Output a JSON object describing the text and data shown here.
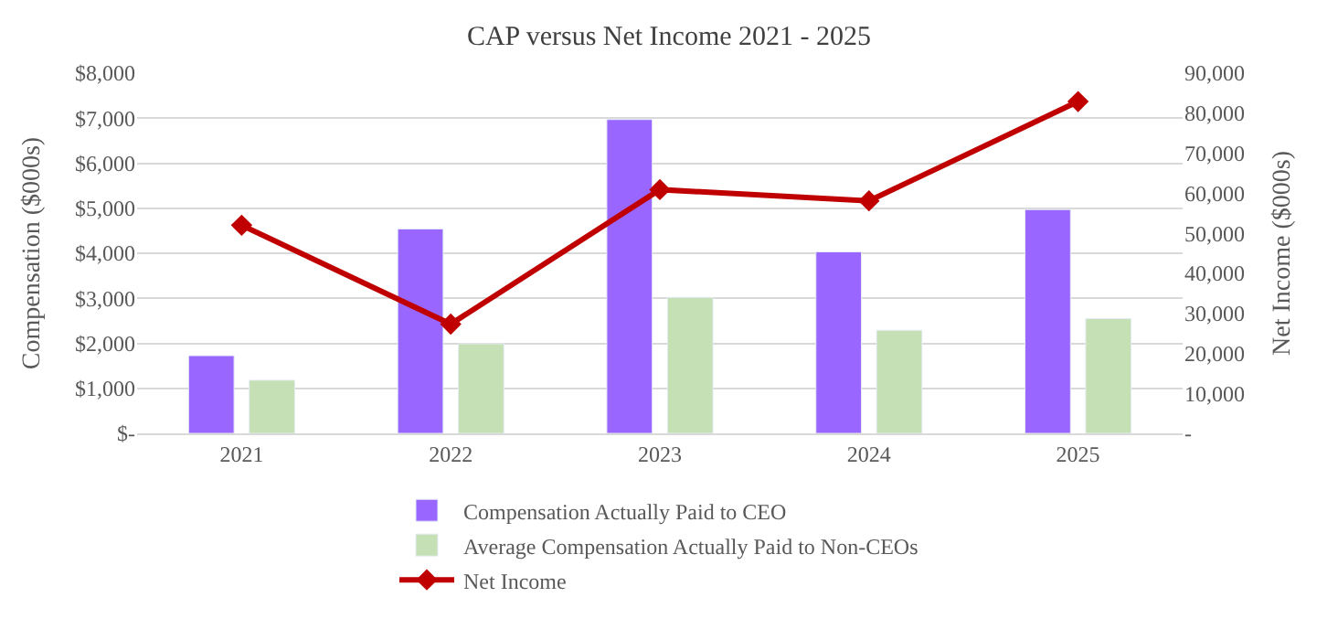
{
  "chart_data": {
    "type": "bar",
    "title": "CAP versus Net Income 2021 - 2025",
    "categories": [
      "2021",
      "2022",
      "2023",
      "2024",
      "2025"
    ],
    "ylabel": "Compensation ($000s)",
    "y2label": "Net Income ($000s)",
    "series": [
      {
        "name": "Compensation Actually Paid to CEO",
        "color": "#9966ff",
        "values": [
          1725,
          4540,
          6970,
          4030,
          4970
        ]
      },
      {
        "name": "Average Compensation Actually Paid to Non-CEOs",
        "color": "#c5e0b4",
        "values": [
          1180,
          1990,
          3020,
          2290,
          2550
        ]
      },
      {
        "name": "Net Income",
        "type": "line",
        "axis": "y2",
        "color": "#c00000",
        "marker": "diamond",
        "values": [
          52000,
          27300,
          60900,
          58100,
          82900
        ]
      }
    ],
    "ylim": [
      0,
      8000
    ],
    "yticks": [
      {
        "value": 0,
        "label": "$-"
      },
      {
        "value": 1000,
        "label": "$1,000"
      },
      {
        "value": 2000,
        "label": "$2,000"
      },
      {
        "value": 3000,
        "label": "$3,000"
      },
      {
        "value": 4000,
        "label": "$4,000"
      },
      {
        "value": 5000,
        "label": "$5,000"
      },
      {
        "value": 6000,
        "label": "$6,000"
      },
      {
        "value": 7000,
        "label": "$7,000"
      },
      {
        "value": 8000,
        "label": "$8,000"
      }
    ],
    "y2lim": [
      0,
      90000
    ],
    "y2ticks": [
      {
        "value": 0,
        "label": "-"
      },
      {
        "value": 10000,
        "label": "10,000"
      },
      {
        "value": 20000,
        "label": "20,000"
      },
      {
        "value": 30000,
        "label": "30,000"
      },
      {
        "value": 40000,
        "label": "40,000"
      },
      {
        "value": 50000,
        "label": "50,000"
      },
      {
        "value": 60000,
        "label": "60,000"
      },
      {
        "value": 70000,
        "label": "70,000"
      },
      {
        "value": 80000,
        "label": "80,000"
      },
      {
        "value": 90000,
        "label": "90,000"
      }
    ],
    "grid": "y",
    "legend": "bottom"
  }
}
